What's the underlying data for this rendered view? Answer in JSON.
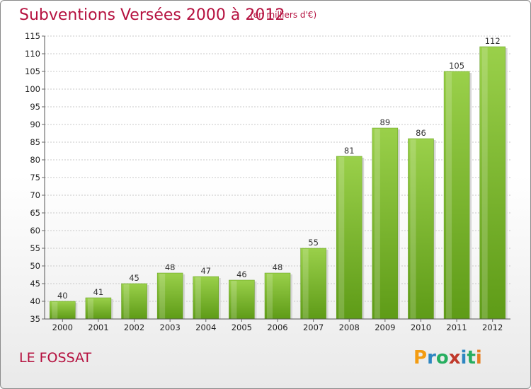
{
  "title": "Subventions Versées 2000 à 2012",
  "unit": "(en milliers d'€)",
  "commune": "LE FOSSAT",
  "brand": {
    "letters": [
      "P",
      "r",
      "o",
      "x",
      "i",
      "t",
      "i"
    ],
    "colors": [
      "#f39c12",
      "#2e86c1",
      "#27ae60",
      "#c0392b",
      "#2e86c1",
      "#27ae60",
      "#e67e22"
    ]
  },
  "chart_data": {
    "type": "bar",
    "categories": [
      "2000",
      "2001",
      "2002",
      "2003",
      "2004",
      "2005",
      "2006",
      "2007",
      "2008",
      "2009",
      "2010",
      "2011",
      "2012"
    ],
    "values": [
      40,
      41,
      45,
      48,
      47,
      46,
      48,
      55,
      81,
      89,
      86,
      105,
      112
    ],
    "ylim": [
      35,
      115
    ],
    "yticks": [
      35,
      40,
      45,
      50,
      55,
      60,
      65,
      70,
      75,
      80,
      85,
      90,
      95,
      100,
      105,
      110,
      115
    ],
    "grid": true,
    "bar_color": "#7dbb2d"
  }
}
